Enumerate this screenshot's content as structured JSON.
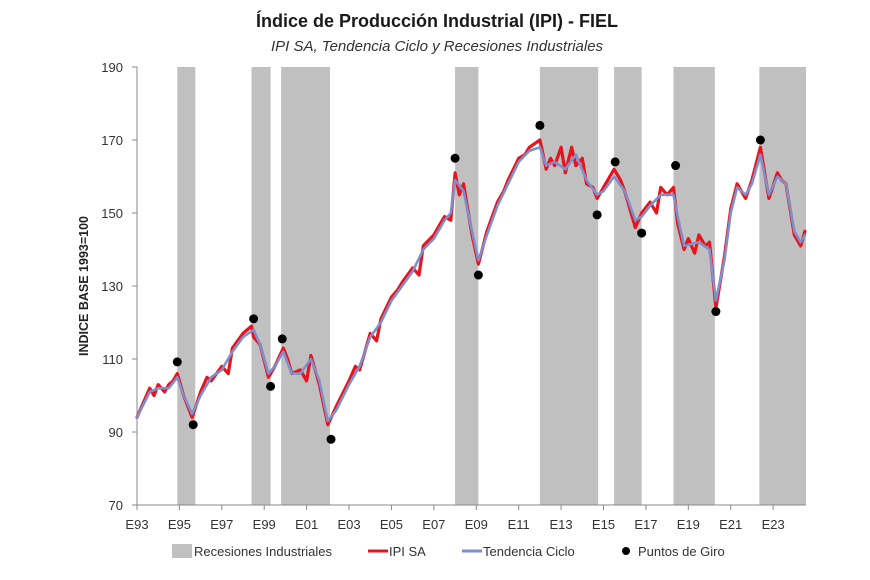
{
  "chart_data": {
    "type": "line",
    "title": "Índice de Producción Industrial (IPI) - FIEL",
    "subtitle": "IPI SA, Tendencia Ciclo y Recesiones Industriales",
    "xlabel": "",
    "ylabel": "INDICE BASE 1993=100",
    "xlim": [
      1993.0,
      2024.55
    ],
    "ylim": [
      70,
      190
    ],
    "yticks": [
      70,
      90,
      110,
      130,
      150,
      170,
      190
    ],
    "xticks": [
      {
        "value": 1993,
        "label": "E93"
      },
      {
        "value": 1995,
        "label": "E95"
      },
      {
        "value": 1997,
        "label": "E97"
      },
      {
        "value": 1999,
        "label": "E99"
      },
      {
        "value": 2001,
        "label": "E01"
      },
      {
        "value": 2003,
        "label": "E03"
      },
      {
        "value": 2005,
        "label": "E05"
      },
      {
        "value": 2007,
        "label": "E07"
      },
      {
        "value": 2009,
        "label": "E09"
      },
      {
        "value": 2011,
        "label": "E11"
      },
      {
        "value": 2013,
        "label": "E13"
      },
      {
        "value": 2015,
        "label": "E15"
      },
      {
        "value": 2017,
        "label": "E17"
      },
      {
        "value": 2019,
        "label": "E19"
      },
      {
        "value": 2021,
        "label": "E21"
      },
      {
        "value": 2023,
        "label": "E23"
      }
    ],
    "grid": false,
    "legend_position": "bottom",
    "legend": [
      {
        "key": "recessions",
        "label": "Recesiones Industriales",
        "color": "#c0c0c0"
      },
      {
        "key": "ipi_sa",
        "label": "IPI SA",
        "color": "#e8141c"
      },
      {
        "key": "trend",
        "label": "Tendencia Ciclo",
        "color": "#7f8fcc"
      },
      {
        "key": "turning_points",
        "label": "Puntos de Giro",
        "color": "#000000"
      }
    ],
    "recessions": [
      {
        "start": 1994.9,
        "end": 1995.75
      },
      {
        "start": 1998.4,
        "end": 1999.3
      },
      {
        "start": 1999.8,
        "end": 2002.1
      },
      {
        "start": 2008.0,
        "end": 2009.1
      },
      {
        "start": 2012.0,
        "end": 2014.75
      },
      {
        "start": 2015.5,
        "end": 2016.8
      },
      {
        "start": 2018.3,
        "end": 2020.25
      },
      {
        "start": 2022.35,
        "end": 2024.55
      }
    ],
    "series": [
      {
        "name": "Tendencia Ciclo",
        "x": [
          1993.0,
          1993.6,
          1994.0,
          1994.5,
          1994.9,
          1995.2,
          1995.6,
          1996.0,
          1996.5,
          1997.0,
          1997.5,
          1998.0,
          1998.5,
          1998.8,
          1999.2,
          1999.5,
          1999.9,
          2000.3,
          2000.7,
          2001.2,
          2001.6,
          2002.0,
          2002.4,
          2003.0,
          2003.5,
          2004.0,
          2004.5,
          2005.0,
          2005.5,
          2006.0,
          2006.5,
          2007.0,
          2007.5,
          2007.8,
          2008.0,
          2008.4,
          2008.8,
          2009.1,
          2009.5,
          2010.0,
          2010.5,
          2011.0,
          2011.5,
          2012.0,
          2012.3,
          2012.7,
          2013.2,
          2013.7,
          2014.2,
          2014.7,
          2015.0,
          2015.5,
          2016.0,
          2016.5,
          2016.8,
          2017.2,
          2017.7,
          2018.3,
          2018.5,
          2018.8,
          2019.5,
          2020.0,
          2020.3,
          2020.7,
          2021.0,
          2021.3,
          2021.7,
          2022.0,
          2022.4,
          2022.8,
          2023.2,
          2023.6,
          2024.0,
          2024.3,
          2024.5
        ],
        "values": [
          94,
          101,
          102,
          102,
          105,
          100,
          95,
          100,
          105,
          107,
          112,
          116,
          118,
          114,
          106,
          108,
          112,
          106,
          106,
          110,
          104,
          93,
          96,
          103,
          108,
          116,
          120,
          126,
          130,
          134,
          140,
          143,
          148,
          150,
          159,
          156,
          145,
          137,
          144,
          152,
          158,
          164,
          167,
          168,
          163,
          164,
          162,
          166,
          159,
          155,
          156,
          160,
          156,
          148,
          149,
          152,
          155,
          155,
          149,
          141,
          142,
          140,
          126,
          137,
          150,
          157,
          155,
          158,
          166,
          155,
          160,
          158,
          145,
          142,
          144
        ]
      },
      {
        "name": "IPI SA",
        "x": [
          1993.0,
          1993.6,
          1993.8,
          1994.0,
          1994.3,
          1994.5,
          1994.7,
          1994.9,
          1995.2,
          1995.6,
          1996.0,
          1996.3,
          1996.5,
          1997.0,
          1997.3,
          1997.5,
          1998.0,
          1998.4,
          1998.5,
          1998.8,
          1999.2,
          1999.5,
          1999.9,
          2000.1,
          2000.3,
          2000.7,
          2001.0,
          2001.2,
          2001.6,
          2002.0,
          2002.4,
          2003.0,
          2003.3,
          2003.5,
          2004.0,
          2004.3,
          2004.5,
          2005.0,
          2005.3,
          2005.5,
          2006.0,
          2006.3,
          2006.5,
          2007.0,
          2007.3,
          2007.5,
          2007.8,
          2008.0,
          2008.2,
          2008.4,
          2008.8,
          2009.1,
          2009.5,
          2010.0,
          2010.3,
          2010.5,
          2011.0,
          2011.3,
          2011.5,
          2012.0,
          2012.3,
          2012.5,
          2012.7,
          2013.0,
          2013.2,
          2013.5,
          2013.7,
          2014.0,
          2014.2,
          2014.5,
          2014.7,
          2015.0,
          2015.5,
          2015.8,
          2016.0,
          2016.5,
          2016.8,
          2017.2,
          2017.5,
          2017.7,
          2018.0,
          2018.3,
          2018.5,
          2018.8,
          2019.0,
          2019.3,
          2019.5,
          2019.8,
          2020.0,
          2020.3,
          2020.7,
          2021.0,
          2021.3,
          2021.7,
          2022.0,
          2022.4,
          2022.8,
          2023.2,
          2023.4,
          2023.6,
          2024.0,
          2024.3,
          2024.5
        ],
        "values": [
          94,
          102,
          100,
          103,
          101,
          103,
          104,
          106,
          100,
          94,
          101,
          105,
          104,
          108,
          106,
          113,
          117,
          119,
          116,
          114,
          105,
          108,
          113,
          110,
          106,
          107,
          104,
          111,
          103,
          92,
          97,
          104,
          108,
          107,
          117,
          115,
          121,
          127,
          129,
          131,
          135,
          133,
          141,
          144,
          147,
          149,
          148,
          161,
          155,
          158,
          144,
          136,
          145,
          153,
          156,
          159,
          165,
          166,
          168,
          170,
          162,
          165,
          163,
          168,
          161,
          168,
          163,
          165,
          158,
          157,
          154,
          157,
          162,
          159,
          156,
          146,
          150,
          153,
          150,
          157,
          155,
          157,
          147,
          140,
          143,
          139,
          144,
          141,
          142,
          124,
          138,
          151,
          158,
          154,
          159,
          168,
          154,
          161,
          159,
          158,
          144,
          141,
          145
        ]
      }
    ],
    "turning_points": [
      {
        "x": 1994.9,
        "y": 109.2
      },
      {
        "x": 1995.65,
        "y": 92.0
      },
      {
        "x": 1998.5,
        "y": 121.0
      },
      {
        "x": 1999.3,
        "y": 102.5
      },
      {
        "x": 1999.85,
        "y": 115.5
      },
      {
        "x": 2002.15,
        "y": 88.0
      },
      {
        "x": 2008.0,
        "y": 165.0
      },
      {
        "x": 2009.1,
        "y": 133.0
      },
      {
        "x": 2012.0,
        "y": 174.0
      },
      {
        "x": 2014.7,
        "y": 149.5
      },
      {
        "x": 2015.55,
        "y": 164.0
      },
      {
        "x": 2016.8,
        "y": 144.5
      },
      {
        "x": 2018.4,
        "y": 163.0
      },
      {
        "x": 2020.3,
        "y": 123.0
      },
      {
        "x": 2022.4,
        "y": 170.0
      }
    ]
  }
}
